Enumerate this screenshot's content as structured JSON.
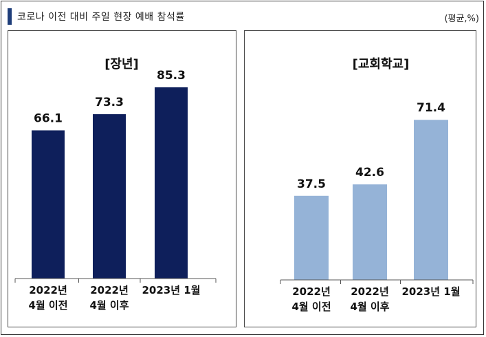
{
  "title": "코로나 이전 대비 주일 현장 예배 참석률",
  "unit": "(평균,%)",
  "colors": {
    "accent": "#1f3e7a",
    "left_bar": "#0e1f5b",
    "right_bar": "#95b3d7",
    "axis": "#555555"
  },
  "chart_data": [
    {
      "type": "bar",
      "title": "[장년]",
      "categories": [
        "2022년\n4월 이전",
        "2022년\n4월 이후",
        "2023년 1월"
      ],
      "values": [
        66.1,
        73.3,
        85.3
      ],
      "labels": [
        "66.1",
        "73.3",
        "85.3"
      ],
      "ylim": [
        0,
        100
      ]
    },
    {
      "type": "bar",
      "title": "[교회학교]",
      "categories": [
        "2022년\n4월 이전",
        "2022년\n4월 이후",
        "2023년 1월"
      ],
      "values": [
        37.5,
        42.6,
        71.4
      ],
      "labels": [
        "37.5",
        "42.6",
        "71.4"
      ],
      "ylim": [
        0,
        100
      ]
    }
  ]
}
